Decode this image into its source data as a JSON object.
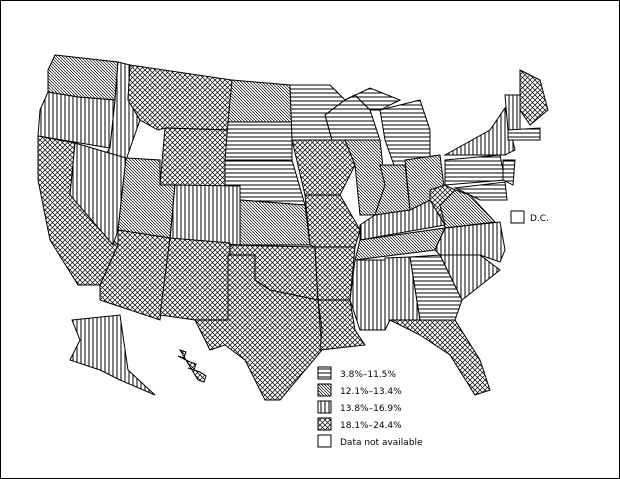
{
  "legend": {
    "items": [
      {
        "label": "3.8%–11.5%",
        "pattern": "horizontal"
      },
      {
        "label": "12.1%–13.4%",
        "pattern": "diagonal"
      },
      {
        "label": "13.8%–16.9%",
        "pattern": "vertical"
      },
      {
        "label": "18.1%–24.4%",
        "pattern": "diamond"
      },
      {
        "label": "Data not available",
        "pattern": "none"
      }
    ]
  },
  "dc_label": "D.C.",
  "dc_pattern": "none",
  "colors": {
    "ink": "#000000",
    "background": "#ffffff"
  },
  "states": {
    "WA": "diagonal",
    "OR": "vertical",
    "ID": "vertical",
    "MT": "diamond",
    "WY": "diamond",
    "ND": "diagonal",
    "SD": "horizontal",
    "NE": "horizontal",
    "CA": "diamond",
    "NV": "vertical",
    "UT": "diagonal",
    "CO": "vertical",
    "KS": "diagonal",
    "AZ": "diamond",
    "NM": "diamond",
    "OK": "diamond",
    "TX": "diamond",
    "MN": "horizontal",
    "IA": "diamond",
    "MO": "diamond",
    "AR": "diamond",
    "LA": "diamond",
    "WI": "horizontal",
    "MI": "horizontal",
    "MIU": "horizontal",
    "IL": "diagonal",
    "IN": "diagonal",
    "OH": "diagonal",
    "KY": "vertical",
    "TN": "diagonal",
    "MS": "vertical",
    "AL": "vertical",
    "GA": "horizontal",
    "FL": "diamond",
    "SC": "vertical",
    "NC": "vertical",
    "VA": "diagonal",
    "WV": "diamond",
    "PA": "horizontal",
    "NY": "vertical",
    "NJ": "horizontal",
    "MD": "horizontal",
    "ME": "diamond",
    "VT": "vertical",
    "MA": "horizontal",
    "AK": "vertical",
    "HI": "diamond"
  }
}
